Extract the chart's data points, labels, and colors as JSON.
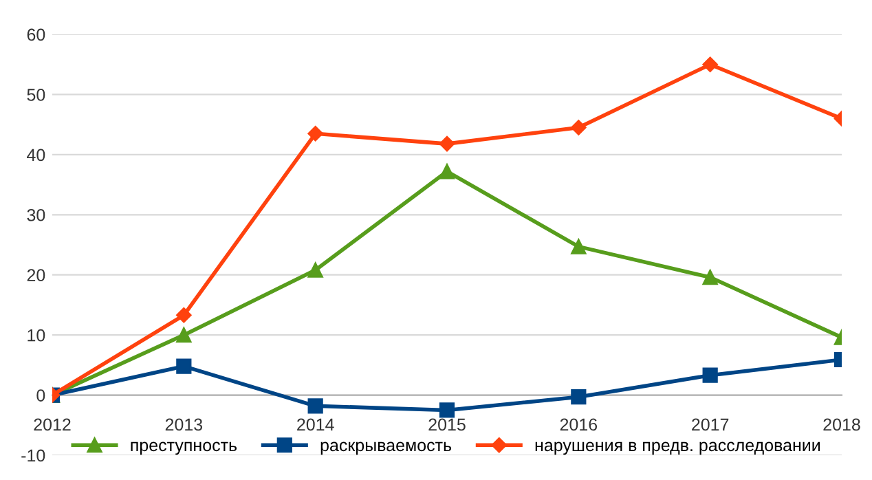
{
  "chart_data": {
    "type": "line",
    "x": [
      2012,
      2013,
      2014,
      2015,
      2016,
      2017,
      2018
    ],
    "series": [
      {
        "name": "преступность",
        "color": "#579d1c",
        "marker": "triangle",
        "values": [
          0,
          10,
          20.8,
          37.2,
          24.7,
          19.6,
          9.6
        ]
      },
      {
        "name": "раскрываемость",
        "color": "#004586",
        "marker": "square",
        "values": [
          0,
          4.8,
          -1.8,
          -2.5,
          -0.3,
          3.3,
          5.9
        ]
      },
      {
        "name": "нарушения в предв. расследовании",
        "color": "#ff420e",
        "marker": "diamond",
        "values": [
          0,
          13.3,
          43.5,
          41.8,
          44.5,
          55,
          46
        ]
      }
    ],
    "xlim": [
      2012,
      2018
    ],
    "xticks": [
      2012,
      2013,
      2014,
      2015,
      2016,
      2017,
      2018
    ],
    "ylim": [
      -10,
      60
    ],
    "yticks": [
      -10,
      0,
      10,
      20,
      30,
      40,
      50,
      60
    ],
    "grid": "y",
    "legend": "bottom",
    "line_style": "solid"
  }
}
